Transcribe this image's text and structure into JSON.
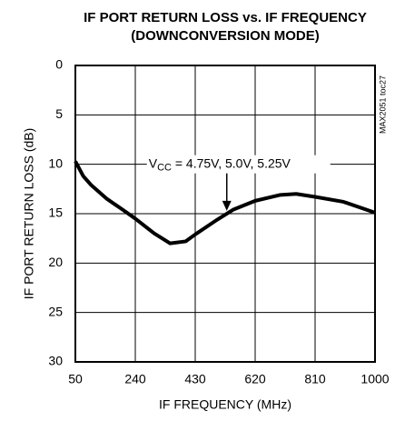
{
  "chart_data": {
    "type": "line",
    "title": [
      "IF PORT RETURN LOSS vs. IF FREQUENCY",
      "(DOWNCONVERSION MODE)"
    ],
    "xlabel": "IF FREQUENCY (MHz)",
    "ylabel": "IF PORT RETURN LOSS (dB)",
    "side_note": "MAX2051 toc27",
    "annotation": [
      "V",
      "CC",
      " = 4.75V, 5.0V, 5.25V"
    ],
    "annotation_point": [
      530,
      14.8
    ],
    "x": [
      50,
      75,
      100,
      150,
      200,
      240,
      300,
      350,
      400,
      430,
      500,
      550,
      620,
      700,
      750,
      810,
      900,
      1000
    ],
    "series": [
      {
        "color": "#000000",
        "values": [
          9.7,
          11.2,
          12.1,
          13.5,
          14.6,
          15.5,
          17.0,
          18.0,
          17.8,
          17.1,
          15.6,
          14.6,
          13.7,
          13.1,
          13.0,
          13.3,
          13.8,
          14.9
        ]
      }
    ],
    "xlim": [
      50,
      1000
    ],
    "xticks": [
      50,
      240,
      430,
      620,
      810,
      1000
    ],
    "ylim": [
      0,
      30
    ],
    "yticks": [
      0,
      5,
      10,
      15,
      20,
      25,
      30
    ],
    "y_reversed": true,
    "grid": true
  }
}
